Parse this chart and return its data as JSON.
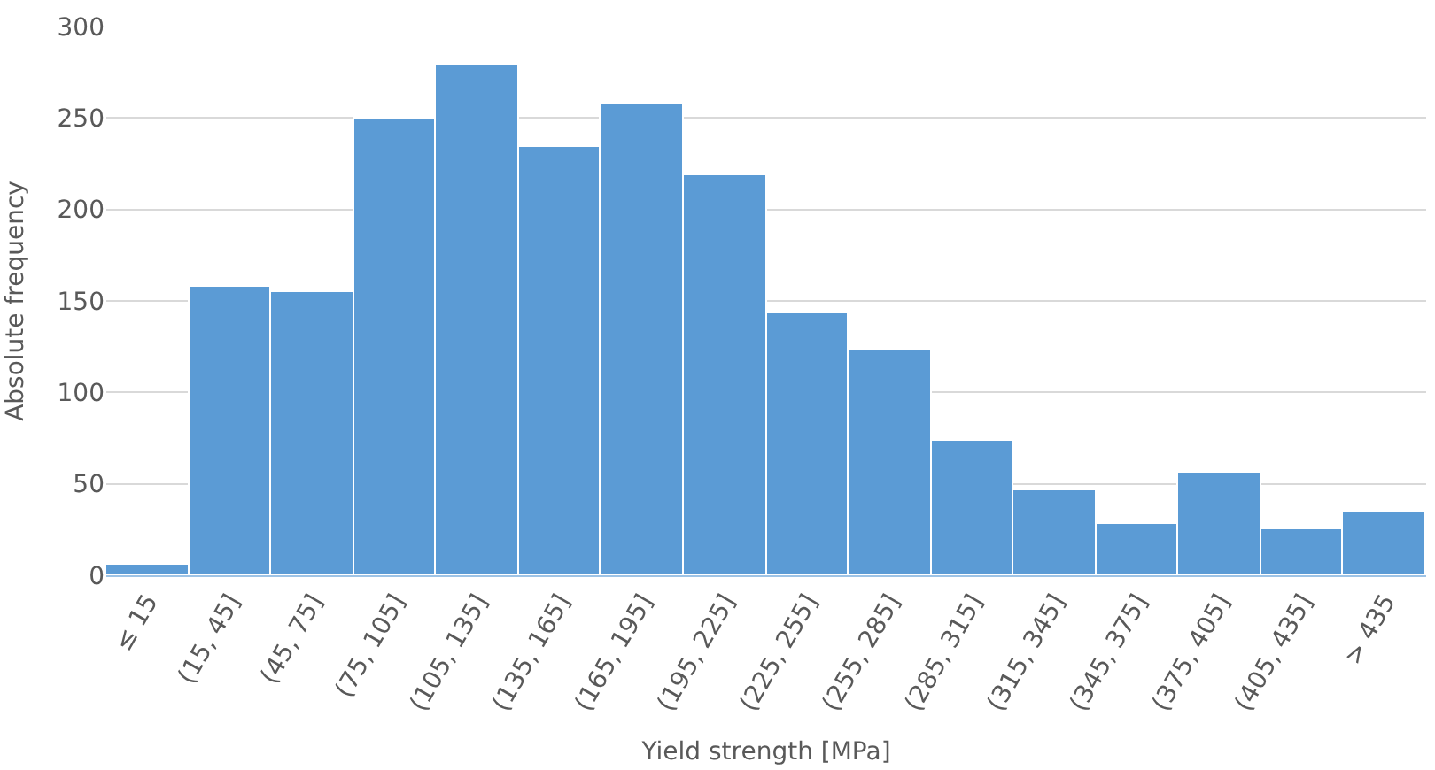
{
  "chart_data": {
    "type": "bar",
    "xlabel": "Yield strength [MPa]",
    "ylabel": "Absolute frequency",
    "categories": [
      "≤ 15",
      "(15, 45]",
      "(45, 75]",
      "(75, 105]",
      "(105, 135]",
      "(135, 165]",
      "(165, 195]",
      "(195, 225]",
      "(225, 255]",
      "(255, 285]",
      "(285, 315]",
      "(315, 345]",
      "(345, 375]",
      "(375, 405]",
      "(405, 435]",
      "> 435"
    ],
    "values": [
      6,
      158,
      155,
      250,
      279,
      234,
      257,
      219,
      143,
      123,
      74,
      46,
      28,
      56,
      25,
      35
    ],
    "color": "#5b9bd5",
    "ylim": [
      0,
      300
    ],
    "yticks": [
      0,
      50,
      100,
      150,
      200,
      250,
      300
    ],
    "grid": "y"
  }
}
